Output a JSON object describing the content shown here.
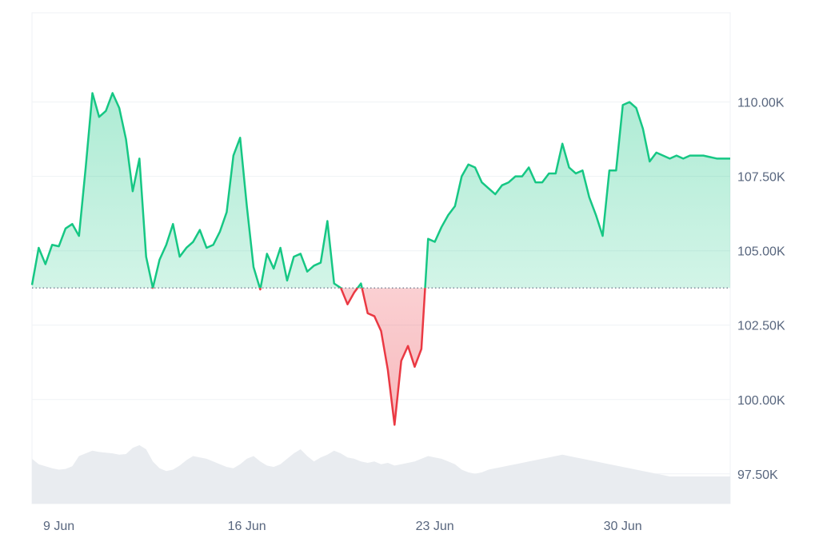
{
  "chart_data": {
    "type": "area",
    "x_label": "",
    "y_label": "",
    "baseline": 103750,
    "colors": {
      "up": "#16c784",
      "down": "#ea3943",
      "grid": "#eff2f5",
      "volume": "#e9ecf0",
      "text": "#58667e"
    },
    "x_ticks": [
      {
        "label": "9 Jun",
        "date": "2025-06-09"
      },
      {
        "label": "16 Jun",
        "date": "2025-06-16"
      },
      {
        "label": "23 Jun",
        "date": "2025-06-23"
      },
      {
        "label": "30 Jun",
        "date": "2025-06-30"
      }
    ],
    "y_ticks": [
      {
        "label": "110.00K",
        "value": 110000
      },
      {
        "label": "107.50K",
        "value": 107500
      },
      {
        "label": "105.00K",
        "value": 105000
      },
      {
        "label": "102.50K",
        "value": 102500
      },
      {
        "label": "100.00K",
        "value": 100000
      },
      {
        "label": "97.50K",
        "value": 97500
      }
    ],
    "x_range": [
      "2025-06-08T00:00",
      "2025-07-04T00:00"
    ],
    "y_range": [
      96500,
      113000
    ],
    "grid": true,
    "series": [
      {
        "x": [
          "2025-06-08T00:00",
          "2025-06-08T06:00",
          "2025-06-08T12:00",
          "2025-06-08T18:00",
          "2025-06-09T00:00",
          "2025-06-09T06:00",
          "2025-06-09T12:00",
          "2025-06-09T18:00",
          "2025-06-10T00:00",
          "2025-06-10T06:00",
          "2025-06-10T12:00",
          "2025-06-10T18:00",
          "2025-06-11T00:00",
          "2025-06-11T06:00",
          "2025-06-11T12:00",
          "2025-06-11T18:00",
          "2025-06-12T00:00",
          "2025-06-12T06:00",
          "2025-06-12T12:00",
          "2025-06-12T18:00",
          "2025-06-13T00:00",
          "2025-06-13T06:00",
          "2025-06-13T12:00",
          "2025-06-13T18:00",
          "2025-06-14T00:00",
          "2025-06-14T06:00",
          "2025-06-14T12:00",
          "2025-06-14T18:00",
          "2025-06-15T00:00",
          "2025-06-15T06:00",
          "2025-06-15T12:00",
          "2025-06-15T18:00",
          "2025-06-16T00:00",
          "2025-06-16T06:00",
          "2025-06-16T12:00",
          "2025-06-16T18:00",
          "2025-06-17T00:00",
          "2025-06-17T06:00",
          "2025-06-17T12:00",
          "2025-06-17T18:00",
          "2025-06-18T00:00",
          "2025-06-18T06:00",
          "2025-06-18T12:00",
          "2025-06-18T18:00",
          "2025-06-19T00:00",
          "2025-06-19T06:00",
          "2025-06-19T12:00",
          "2025-06-19T18:00",
          "2025-06-20T00:00",
          "2025-06-20T06:00",
          "2025-06-20T12:00",
          "2025-06-20T18:00",
          "2025-06-21T00:00",
          "2025-06-21T06:00",
          "2025-06-21T12:00",
          "2025-06-21T18:00",
          "2025-06-22T00:00",
          "2025-06-22T06:00",
          "2025-06-22T12:00",
          "2025-06-22T18:00",
          "2025-06-23T00:00",
          "2025-06-23T06:00",
          "2025-06-23T12:00",
          "2025-06-23T18:00",
          "2025-06-24T00:00",
          "2025-06-24T06:00",
          "2025-06-24T12:00",
          "2025-06-24T18:00",
          "2025-06-25T00:00",
          "2025-06-25T06:00",
          "2025-06-25T12:00",
          "2025-06-25T18:00",
          "2025-06-26T00:00",
          "2025-06-26T06:00",
          "2025-06-26T12:00",
          "2025-06-26T18:00",
          "2025-06-27T00:00",
          "2025-06-27T06:00",
          "2025-06-27T12:00",
          "2025-06-27T18:00",
          "2025-06-28T00:00",
          "2025-06-28T06:00",
          "2025-06-28T12:00",
          "2025-06-28T18:00",
          "2025-06-29T00:00",
          "2025-06-29T06:00",
          "2025-06-29T12:00",
          "2025-06-29T18:00",
          "2025-06-30T00:00",
          "2025-06-30T06:00",
          "2025-06-30T12:00",
          "2025-06-30T18:00",
          "2025-07-01T00:00",
          "2025-07-01T06:00",
          "2025-07-01T12:00",
          "2025-07-01T18:00",
          "2025-07-02T00:00",
          "2025-07-02T06:00",
          "2025-07-02T12:00",
          "2025-07-02T18:00",
          "2025-07-03T00:00",
          "2025-07-03T06:00",
          "2025-07-03T12:00",
          "2025-07-03T18:00",
          "2025-07-04T00:00"
        ],
        "y": [
          103850,
          105100,
          104550,
          105200,
          105150,
          105750,
          105900,
          105500,
          107800,
          110300,
          109500,
          109700,
          110300,
          109800,
          108750,
          107000,
          108100,
          104800,
          103750,
          104700,
          105200,
          105900,
          104800,
          105100,
          105300,
          105700,
          105100,
          105200,
          105650,
          106300,
          108200,
          108800,
          106500,
          104450,
          103700,
          104900,
          104400,
          105100,
          104000,
          104800,
          104900,
          104300,
          104500,
          104600,
          106000,
          103900,
          103750,
          103200,
          103600,
          103900,
          102900,
          102800,
          102300,
          101000,
          99150,
          101300,
          101800,
          101100,
          101700,
          105400,
          105300,
          105800,
          106200,
          106500,
          107500,
          107900,
          107800,
          107300,
          107100,
          106900,
          107200,
          107300,
          107500,
          107500,
          107800,
          107300,
          107300,
          107600,
          107600,
          108600,
          107800,
          107600,
          107700,
          106800,
          106200,
          105500,
          107700,
          107700,
          109900,
          110000,
          109800,
          109100,
          108000,
          108300,
          108200,
          108100,
          108200,
          108100,
          108200,
          108200,
          108200,
          108150,
          108100,
          108100,
          108100
        ],
        "volume": [
          0.66,
          0.58,
          0.55,
          0.52,
          0.5,
          0.51,
          0.55,
          0.7,
          0.74,
          0.78,
          0.76,
          0.75,
          0.74,
          0.72,
          0.73,
          0.82,
          0.86,
          0.8,
          0.62,
          0.52,
          0.48,
          0.5,
          0.56,
          0.64,
          0.7,
          0.68,
          0.66,
          0.62,
          0.58,
          0.54,
          0.52,
          0.58,
          0.66,
          0.7,
          0.62,
          0.56,
          0.54,
          0.58,
          0.66,
          0.74,
          0.8,
          0.7,
          0.62,
          0.68,
          0.72,
          0.78,
          0.74,
          0.68,
          0.66,
          0.62,
          0.6,
          0.62,
          0.58,
          0.6,
          0.56,
          0.58,
          0.6,
          0.62,
          0.66,
          0.7,
          0.68,
          0.66,
          0.62,
          0.58,
          0.5,
          0.46,
          0.44,
          0.46,
          0.5,
          0.52,
          0.54,
          0.56,
          0.58,
          0.6,
          0.62,
          0.64,
          0.66,
          0.68,
          0.7,
          0.72,
          0.7,
          0.68,
          0.66,
          0.64,
          0.62,
          0.6,
          0.58,
          0.56,
          0.54,
          0.52,
          0.5,
          0.48,
          0.46,
          0.44,
          0.42,
          0.4,
          0.4,
          0.4,
          0.4,
          0.4,
          0.4,
          0.4,
          0.4,
          0.4,
          0.4
        ]
      }
    ]
  }
}
